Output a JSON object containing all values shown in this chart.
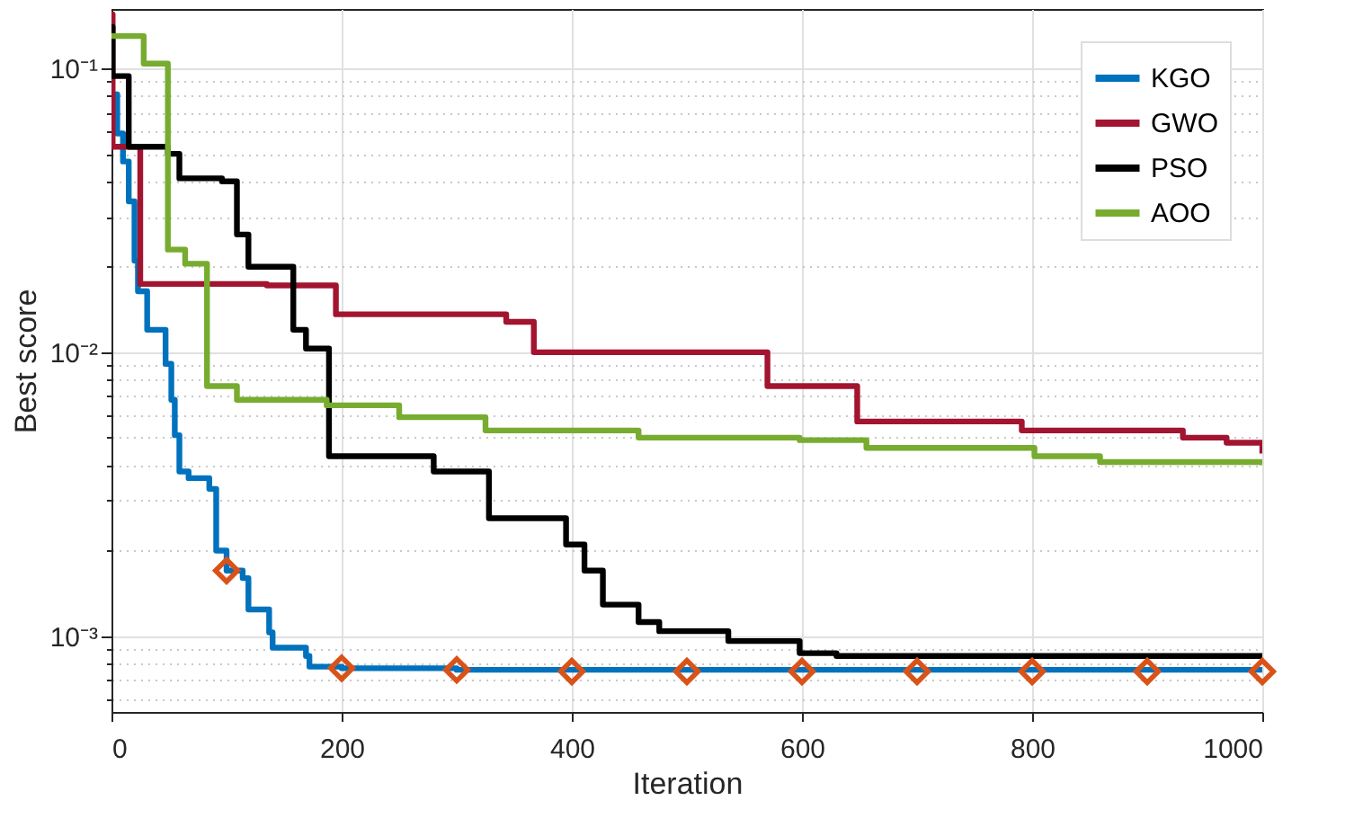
{
  "chart_data": {
    "type": "step",
    "xlabel": "Iteration",
    "ylabel": "Best score",
    "log": "y",
    "grid": true,
    "legend": "top right",
    "xlim": [
      0,
      1000
    ],
    "xticks": [
      0,
      200,
      400,
      600,
      800,
      1000
    ],
    "ylim": [
      0.00054,
      0.162
    ],
    "yticks": [
      {
        "value": 0.0006,
        "label": null
      },
      {
        "value": 0.0007,
        "label": null
      },
      {
        "value": 0.0008,
        "label": null
      },
      {
        "value": 0.0009,
        "label": null
      },
      {
        "value": 0.001,
        "label": "10⁻³"
      },
      {
        "value": 0.002,
        "label": null
      },
      {
        "value": 0.003,
        "label": null
      },
      {
        "value": 0.004,
        "label": null
      },
      {
        "value": 0.005,
        "label": null
      },
      {
        "value": 0.006,
        "label": null
      },
      {
        "value": 0.007,
        "label": null
      },
      {
        "value": 0.008,
        "label": null
      },
      {
        "value": 0.009,
        "label": null
      },
      {
        "value": 0.01,
        "label": "10⁻²"
      },
      {
        "value": 0.02,
        "label": null
      },
      {
        "value": 0.03,
        "label": null
      },
      {
        "value": 0.04,
        "label": null
      },
      {
        "value": 0.05,
        "label": null
      },
      {
        "value": 0.06,
        "label": null
      },
      {
        "value": 0.07,
        "label": null
      },
      {
        "value": 0.08,
        "label": null
      },
      {
        "value": 0.09,
        "label": null
      },
      {
        "value": 0.1,
        "label": "10⁻¹"
      }
    ],
    "series": [
      {
        "name": "KGO",
        "color": "#0072bd",
        "x": [
          0,
          5,
          10,
          15,
          20,
          23,
          31,
          47,
          52,
          55,
          59,
          67,
          85,
          91,
          100,
          114,
          119,
          137,
          140,
          169,
          172,
          200,
          300,
          1000
        ],
        "values": [
          0.081,
          0.059,
          0.047,
          0.034,
          0.021,
          0.0164,
          0.012,
          0.0091,
          0.0068,
          0.0051,
          0.0038,
          0.0036,
          0.0033,
          0.002,
          0.0017,
          0.0016,
          0.00124,
          0.00103,
          0.00091,
          0.00085,
          0.00078,
          0.00077,
          0.00076,
          0.00075
        ]
      },
      {
        "type": "scatter",
        "color": "#d95319",
        "marker": "diamond",
        "x": [
          100,
          200,
          300,
          400,
          500,
          600,
          700,
          800,
          900,
          1000
        ],
        "values": [
          0.0017,
          0.00077,
          0.00076,
          0.00075,
          0.00075,
          0.00075,
          0.00075,
          0.00075,
          0.00075,
          0.00075
        ]
      },
      {
        "name": "GWO",
        "color": "#a2142f",
        "x": [
          0,
          1,
          25,
          135,
          195,
          343,
          367,
          570,
          648,
          791,
          931,
          969,
          1000
        ],
        "values": [
          0.155,
          0.053,
          0.0174,
          0.0172,
          0.0136,
          0.0128,
          0.01,
          0.0076,
          0.0057,
          0.0053,
          0.005,
          0.0048,
          0.0044
        ]
      },
      {
        "name": "PSO",
        "color": "#000000",
        "x": [
          0,
          1,
          15,
          49,
          59,
          96,
          109,
          119,
          158,
          169,
          189,
          280,
          328,
          395,
          411,
          427,
          458,
          476,
          536,
          598,
          630,
          1000
        ],
        "values": [
          0.14,
          0.094,
          0.053,
          0.05,
          0.041,
          0.04,
          0.026,
          0.02,
          0.012,
          0.0103,
          0.0043,
          0.0038,
          0.0026,
          0.0021,
          0.0017,
          0.00129,
          0.00112,
          0.00104,
          0.00096,
          0.00087,
          0.00085,
          0.00085
        ]
      },
      {
        "name": "AOO",
        "color": "#77ac30",
        "x": [
          0,
          28,
          49,
          64,
          83,
          109,
          187,
          250,
          325,
          458,
          598,
          656,
          802,
          859,
          1000
        ],
        "values": [
          0.13,
          0.104,
          0.023,
          0.0205,
          0.0076,
          0.0068,
          0.0065,
          0.0059,
          0.0053,
          0.005,
          0.0049,
          0.0046,
          0.0043,
          0.0041,
          0.004
        ]
      }
    ]
  }
}
